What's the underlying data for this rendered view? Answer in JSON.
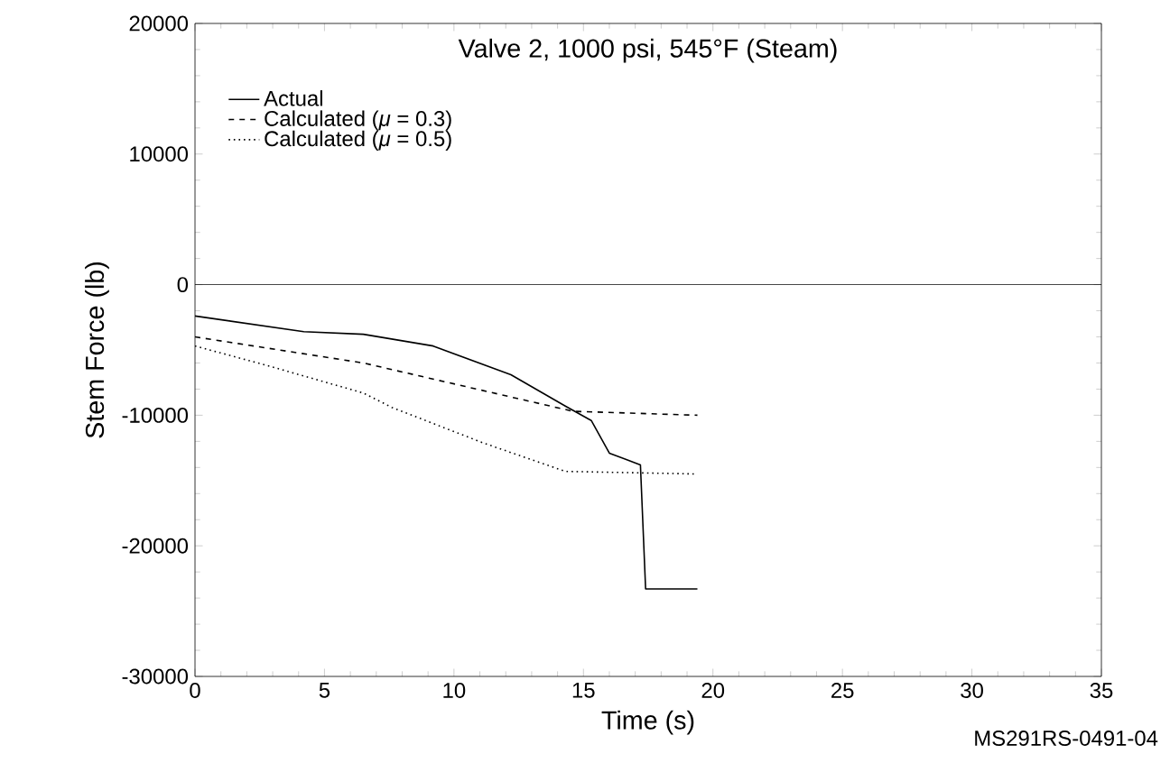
{
  "chart_data": {
    "type": "line",
    "title": "Valve 2, 1000 psi, 545°F (Steam)",
    "xlabel": "Time (s)",
    "ylabel": "Stem Force (lb)",
    "xlim": [
      0,
      35
    ],
    "xticks": [
      0,
      5,
      10,
      15,
      20,
      25,
      30,
      35
    ],
    "ylim": [
      -30000,
      20000
    ],
    "yticks": [
      -30000,
      -20000,
      -10000,
      0,
      10000,
      20000
    ],
    "ref_lines": [
      {
        "axis": "y",
        "value": 0,
        "color": "#000000"
      }
    ],
    "legend": "top left",
    "annotations": [
      "MS291RS-0491-04"
    ],
    "series": [
      {
        "name": "Actual",
        "color": "#000000",
        "line_style": "solid",
        "x": [
          0,
          4.2,
          6.5,
          9.2,
          12.2,
          14.3,
          15.3,
          16,
          17.2,
          17.4,
          19.4
        ],
        "values": [
          -2400,
          -3600,
          -3800,
          -4700,
          -6900,
          -9300,
          -10400,
          -12900,
          -13800,
          -23300,
          -23300
        ]
      },
      {
        "name": "Calculated (*μ* = 0.3)",
        "color": "#000000",
        "line_style": "dashed",
        "x": [
          0,
          6.5,
          11.1,
          14.6,
          19.4
        ],
        "values": [
          -4000,
          -6000,
          -8100,
          -9700,
          -10000
        ]
      },
      {
        "name": "Calculated (*μ* = 0.5)",
        "color": "#000000",
        "line_style": "dotted",
        "x": [
          0,
          2.8,
          6.5,
          7.6,
          11.1,
          14.3,
          19.4
        ],
        "values": [
          -4700,
          -6200,
          -8300,
          -9400,
          -12100,
          -14300,
          -14500
        ]
      }
    ]
  }
}
